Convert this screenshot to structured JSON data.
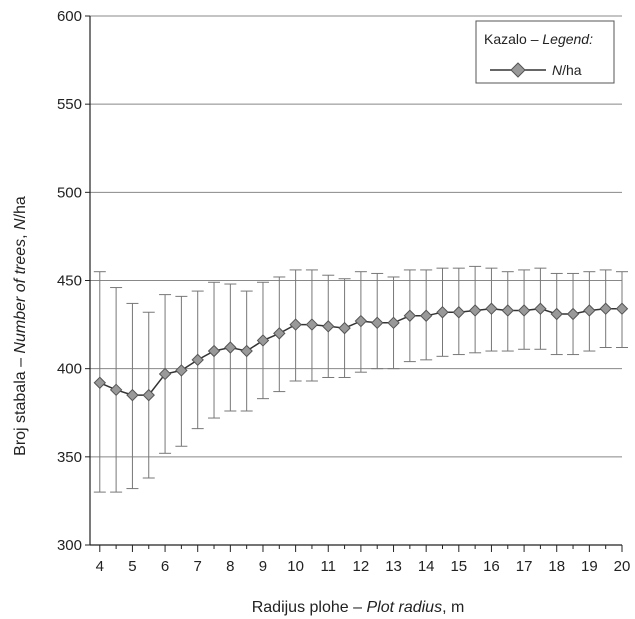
{
  "chart_data": {
    "type": "line",
    "xlabel_main": "Radijus plohe – ",
    "xlabel_italic": "Plot radius",
    "xlabel_unit": ", m",
    "ylabel_main": "Broj stabala – ",
    "ylabel_italic": "Number of trees",
    "ylabel_sep": ", ",
    "ylabel_unit_italic": "N",
    "ylabel_unit": "/ha",
    "legend_title_main": "Kazalo – ",
    "legend_title_italic": "Legend:",
    "series_label_italic": "N",
    "series_label_rest": "/ha",
    "xlim": [
      3.7,
      20
    ],
    "ylim": [
      300,
      600
    ],
    "x_ticks": [
      4,
      5,
      6,
      7,
      8,
      9,
      10,
      11,
      12,
      13,
      14,
      15,
      16,
      17,
      18,
      19,
      20
    ],
    "y_ticks": [
      300,
      350,
      400,
      450,
      500,
      550,
      600
    ],
    "grid": "horizontal",
    "legend_position": "top-right",
    "colors": {
      "marker": "#999999",
      "line": "#333333",
      "errorbar": "#777777",
      "grid": "#888888"
    },
    "series": [
      {
        "name": "N/ha",
        "x": [
          4,
          4.5,
          5,
          5.5,
          6,
          6.5,
          7,
          7.5,
          8,
          8.5,
          9,
          9.5,
          10,
          10.5,
          11,
          11.5,
          12,
          12.5,
          13,
          13.5,
          14,
          14.5,
          15,
          15.5,
          16,
          16.5,
          17,
          17.5,
          18,
          18.5,
          19,
          19.5,
          20
        ],
        "y": [
          392,
          388,
          385,
          385,
          397,
          399,
          405,
          410,
          412,
          410,
          416,
          420,
          425,
          425,
          424,
          423,
          427,
          426,
          426,
          430,
          430,
          432,
          432,
          433,
          434,
          433,
          433,
          434,
          431,
          431,
          433,
          434,
          434
        ],
        "lower": [
          330,
          330,
          332,
          338,
          352,
          356,
          366,
          372,
          376,
          376,
          383,
          387,
          393,
          393,
          395,
          395,
          398,
          400,
          400,
          404,
          405,
          407,
          408,
          409,
          410,
          410,
          411,
          411,
          408,
          408,
          410,
          412,
          412
        ],
        "upper": [
          455,
          446,
          437,
          432,
          442,
          441,
          444,
          449,
          448,
          444,
          449,
          452,
          456,
          456,
          453,
          451,
          455,
          454,
          452,
          456,
          456,
          457,
          457,
          458,
          457,
          455,
          456,
          457,
          454,
          454,
          455,
          456,
          455
        ]
      }
    ]
  }
}
